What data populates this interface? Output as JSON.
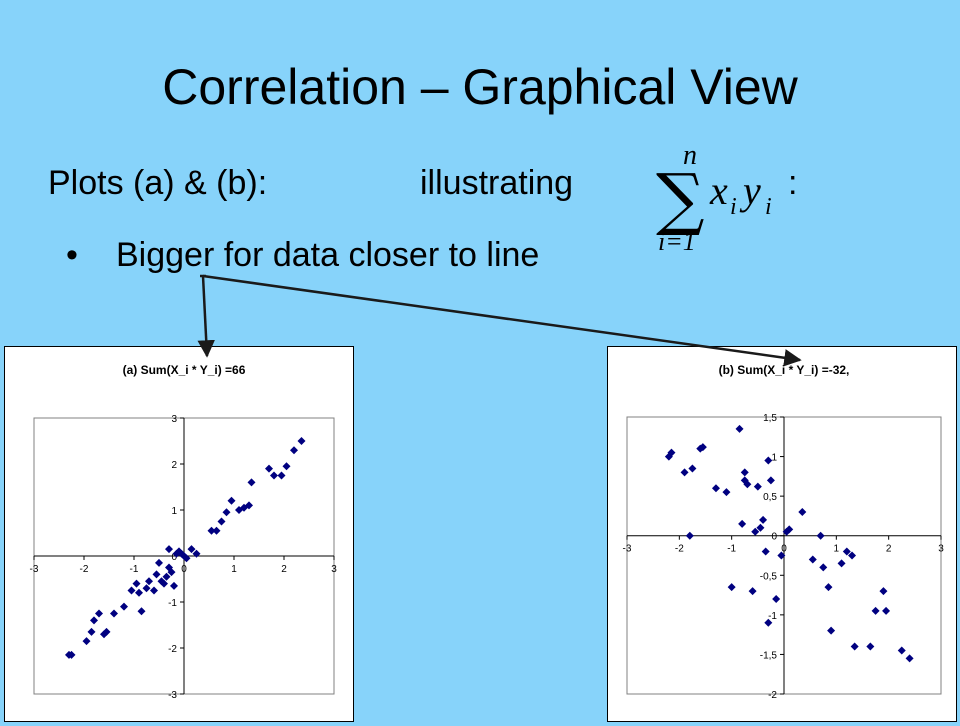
{
  "slide": {
    "title": "Correlation – Graphical View",
    "plots_label": "Plots (a) & (b):",
    "illustrating_label": "illustrating",
    "colon": ":",
    "bullet_symbol": "•",
    "bullet_text": "Bigger for data closer to line",
    "formula": {
      "sum_symbol": "∑",
      "upper": "n",
      "lower": "i=1",
      "x": "x",
      "x_sub": "i",
      "y": "y",
      "y_sub": "i"
    }
  },
  "colors": {
    "background": "#87D3FA",
    "marker": "#000080",
    "arrow": "#1a1a1a"
  },
  "chart_data": [
    {
      "type": "scatter",
      "title": "(a)   Sum(X_i * Y_i) =66",
      "xlim": [
        -3,
        3
      ],
      "ylim": [
        -3,
        3
      ],
      "xticks": [
        "-3",
        "-2",
        "-1",
        "0",
        "1",
        "2",
        "3"
      ],
      "yticks": [
        "3",
        "2",
        "1",
        "0",
        "-1",
        "-2",
        "-3"
      ],
      "ytick_values": [
        3,
        2,
        1,
        0,
        -1,
        -2,
        -3
      ],
      "grid": false,
      "marker": "diamond",
      "points": [
        [
          -2.3,
          -2.15
        ],
        [
          -2.25,
          -2.15
        ],
        [
          -1.95,
          -1.85
        ],
        [
          -1.85,
          -1.65
        ],
        [
          -1.8,
          -1.4
        ],
        [
          -1.7,
          -1.25
        ],
        [
          -1.6,
          -1.7
        ],
        [
          -1.55,
          -1.65
        ],
        [
          -1.4,
          -1.25
        ],
        [
          -1.2,
          -1.1
        ],
        [
          -1.05,
          -0.75
        ],
        [
          -0.95,
          -0.6
        ],
        [
          -0.9,
          -0.8
        ],
        [
          -0.85,
          -1.2
        ],
        [
          -0.75,
          -0.7
        ],
        [
          -0.7,
          -0.55
        ],
        [
          -0.6,
          -0.75
        ],
        [
          -0.55,
          -0.4
        ],
        [
          -0.5,
          -0.15
        ],
        [
          -0.45,
          -0.55
        ],
        [
          -0.4,
          -0.6
        ],
        [
          -0.35,
          -0.45
        ],
        [
          -0.3,
          -0.25
        ],
        [
          -0.3,
          0.15
        ],
        [
          -0.25,
          -0.35
        ],
        [
          -0.2,
          -0.65
        ],
        [
          -0.15,
          0.05
        ],
        [
          -0.1,
          0.1
        ],
        [
          -0.05,
          0.05
        ],
        [
          0.0,
          0.0
        ],
        [
          0.05,
          -0.05
        ],
        [
          0.15,
          0.15
        ],
        [
          0.25,
          0.05
        ],
        [
          0.55,
          0.55
        ],
        [
          0.65,
          0.55
        ],
        [
          0.75,
          0.75
        ],
        [
          0.85,
          0.95
        ],
        [
          0.95,
          1.2
        ],
        [
          1.1,
          1.0
        ],
        [
          1.2,
          1.05
        ],
        [
          1.3,
          1.1
        ],
        [
          1.35,
          1.6
        ],
        [
          1.7,
          1.9
        ],
        [
          1.8,
          1.75
        ],
        [
          1.95,
          1.75
        ],
        [
          2.05,
          1.95
        ],
        [
          2.2,
          2.3
        ],
        [
          2.35,
          2.5
        ]
      ]
    },
    {
      "type": "scatter",
      "title": "(b)   Sum(X_i * Y_i) =-32,",
      "xlim": [
        -3,
        3
      ],
      "ylim": [
        -2,
        1.5
      ],
      "xticks": [
        "-3",
        "-2",
        "-1",
        "0",
        "1",
        "2",
        "3"
      ],
      "yticks": [
        "1,5",
        "1",
        "0,5",
        "0",
        "-0,5",
        "-1",
        "-1,5",
        "-2"
      ],
      "ytick_values": [
        1.5,
        1,
        0.5,
        0,
        -0.5,
        -1,
        -1.5,
        -2
      ],
      "grid": false,
      "marker": "diamond",
      "points": [
        [
          -2.2,
          1.0
        ],
        [
          -2.15,
          1.05
        ],
        [
          -1.9,
          0.8
        ],
        [
          -1.8,
          0.0
        ],
        [
          -1.75,
          0.85
        ],
        [
          -1.6,
          1.1
        ],
        [
          -1.55,
          1.12
        ],
        [
          -1.3,
          0.6
        ],
        [
          -1.1,
          0.55
        ],
        [
          -1.0,
          -0.65
        ],
        [
          -0.85,
          1.35
        ],
        [
          -0.8,
          0.15
        ],
        [
          -0.75,
          0.7
        ],
        [
          -0.75,
          0.8
        ],
        [
          -0.7,
          0.65
        ],
        [
          -0.6,
          -0.7
        ],
        [
          -0.55,
          0.05
        ],
        [
          -0.5,
          0.62
        ],
        [
          -0.45,
          0.1
        ],
        [
          -0.4,
          0.2
        ],
        [
          -0.35,
          -0.2
        ],
        [
          -0.3,
          -1.1
        ],
        [
          -0.3,
          0.95
        ],
        [
          -0.25,
          0.7
        ],
        [
          -0.15,
          -0.8
        ],
        [
          -0.05,
          -0.25
        ],
        [
          0.05,
          0.05
        ],
        [
          0.1,
          0.08
        ],
        [
          0.35,
          0.3
        ],
        [
          0.55,
          -0.3
        ],
        [
          0.7,
          0.0
        ],
        [
          0.75,
          -0.4
        ],
        [
          0.85,
          -0.65
        ],
        [
          0.9,
          -1.2
        ],
        [
          1.1,
          -0.35
        ],
        [
          1.2,
          -0.2
        ],
        [
          1.3,
          -0.25
        ],
        [
          1.35,
          -1.4
        ],
        [
          1.65,
          -1.4
        ],
        [
          1.75,
          -0.95
        ],
        [
          1.9,
          -0.7
        ],
        [
          1.95,
          -0.95
        ],
        [
          2.25,
          -1.45
        ],
        [
          2.4,
          -1.55
        ]
      ]
    }
  ]
}
